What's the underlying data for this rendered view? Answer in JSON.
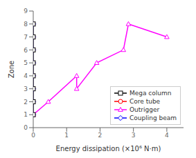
{
  "chart_data": {
    "type": "line",
    "xlabel": "Energy dissipation (×10⁶ N·m)",
    "ylabel": "Zone",
    "xlim": [
      0,
      4.5
    ],
    "ylim": [
      0,
      9
    ],
    "xticks": [
      0,
      1,
      2,
      3,
      4
    ],
    "yticks": [
      0,
      1,
      2,
      3,
      4,
      5,
      6,
      7,
      8,
      9
    ],
    "grid": false,
    "legend": "lower right",
    "series": [
      {
        "name": "Mega column",
        "color": "black",
        "marker": "square",
        "line_style": "solid",
        "x": [
          0,
          0,
          0,
          0,
          0,
          0,
          0,
          0
        ],
        "values": [
          1,
          2,
          3,
          4,
          5,
          6,
          7,
          8
        ]
      },
      {
        "name": "Core tube",
        "color": "red",
        "marker": "circle",
        "line_style": "solid",
        "x": [
          0,
          0,
          0,
          0,
          0,
          0,
          0,
          0
        ],
        "values": [
          1,
          2,
          3,
          4,
          5,
          6,
          7,
          8
        ]
      },
      {
        "name": "Outrigger",
        "color": "magenta",
        "marker": "triangle",
        "line_style": "solid",
        "x": [
          0.0,
          0.45,
          1.3,
          1.3,
          1.9,
          2.7,
          2.85,
          4.0
        ],
        "values": [
          1,
          2,
          4,
          3,
          5,
          6,
          8,
          7
        ]
      },
      {
        "name": "Coupling beam",
        "color": "blue",
        "marker": "diamond",
        "line_style": "solid",
        "x": [
          0,
          0,
          0,
          0,
          0,
          0,
          0,
          0
        ],
        "values": [
          1,
          2,
          3,
          4,
          5,
          6,
          7,
          8
        ]
      }
    ]
  }
}
